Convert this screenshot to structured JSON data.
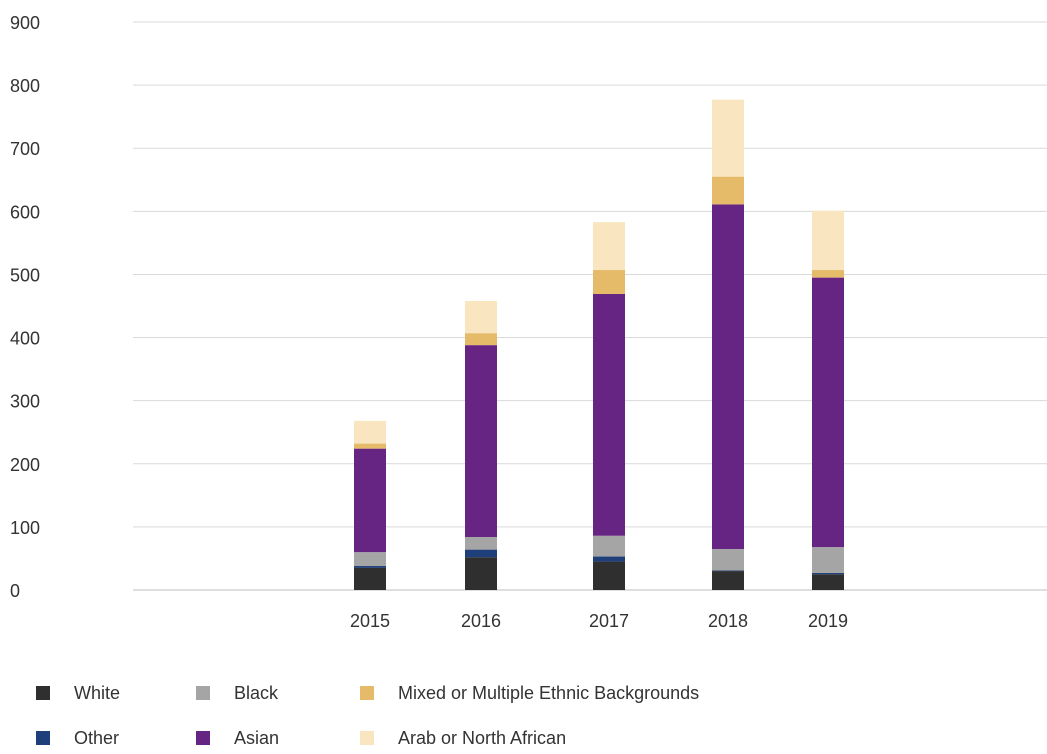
{
  "chart_data": {
    "type": "bar",
    "stacked": true,
    "categories": [
      "2015",
      "2016",
      "2017",
      "2018",
      "2019"
    ],
    "series": [
      {
        "name": "White",
        "color": "#2f2f2f",
        "values": [
          35,
          52,
          45,
          30,
          25
        ]
      },
      {
        "name": "Other",
        "color": "#1f3f7a",
        "values": [
          3,
          12,
          8,
          1,
          2
        ]
      },
      {
        "name": "Black",
        "color": "#a5a5a5",
        "values": [
          22,
          20,
          33,
          34,
          41
        ]
      },
      {
        "name": "Asian",
        "color": "#662483",
        "values": [
          164,
          304,
          383,
          546,
          427
        ]
      },
      {
        "name": "Mixed or Multiple Ethnic Backgrounds",
        "color": "#e5bb6a",
        "values": [
          8,
          19,
          38,
          44,
          12
        ]
      },
      {
        "name": "Arab or North African",
        "color": "#f9e6c0",
        "values": [
          36,
          51,
          76,
          122,
          94
        ]
      }
    ],
    "y_ticks": [
      "0",
      "100",
      "200",
      "300",
      "400",
      "500",
      "600",
      "700",
      "800",
      "900"
    ],
    "ylim": [
      0,
      900
    ],
    "grid": true,
    "legend": "bottom-left",
    "legend_rows": [
      [
        "White",
        "Black",
        "Mixed or Multiple Ethnic Backgrounds"
      ],
      [
        "Other",
        "Asian",
        "Arab or North African"
      ]
    ]
  }
}
